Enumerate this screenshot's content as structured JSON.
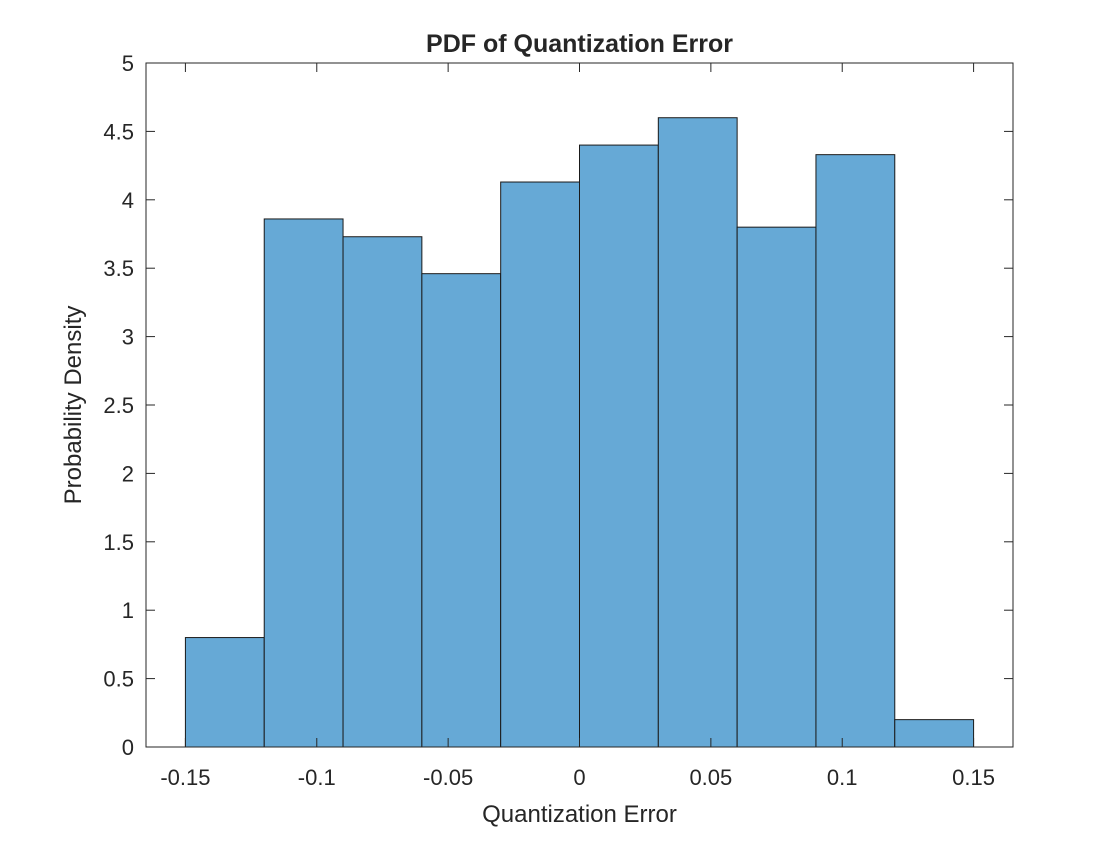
{
  "colors": {
    "bar_fill": "#66A9D6",
    "bar_edge": "#1A1A1A",
    "axes": "#262626",
    "background": "#FFFFFF"
  },
  "chart_data": {
    "type": "bar",
    "histogram": true,
    "title": "PDF of Quantization Error",
    "xlabel": "Quantization Error",
    "ylabel": "Probability Density",
    "xlim": [
      -0.165,
      0.165
    ],
    "ylim": [
      0,
      5
    ],
    "xticks": [
      -0.15,
      -0.1,
      -0.05,
      0,
      0.05,
      0.1,
      0.15
    ],
    "xtick_labels": [
      "-0.15",
      "-0.1",
      "-0.05",
      "0",
      "0.05",
      "0.1",
      "0.15"
    ],
    "yticks": [
      0,
      0.5,
      1,
      1.5,
      2,
      2.5,
      3,
      3.5,
      4,
      4.5,
      5
    ],
    "ytick_labels": [
      "0",
      "0.5",
      "1",
      "1.5",
      "2",
      "2.5",
      "3",
      "3.5",
      "4",
      "4.5",
      "5"
    ],
    "bin_edges": [
      -0.15,
      -0.12,
      -0.09,
      -0.06,
      -0.03,
      0,
      0.03,
      0.06,
      0.09,
      0.12,
      0.15
    ],
    "values": [
      0.8,
      3.86,
      3.73,
      3.46,
      4.13,
      4.4,
      4.6,
      3.8,
      4.33,
      0.2
    ],
    "grid": false,
    "box": true
  }
}
